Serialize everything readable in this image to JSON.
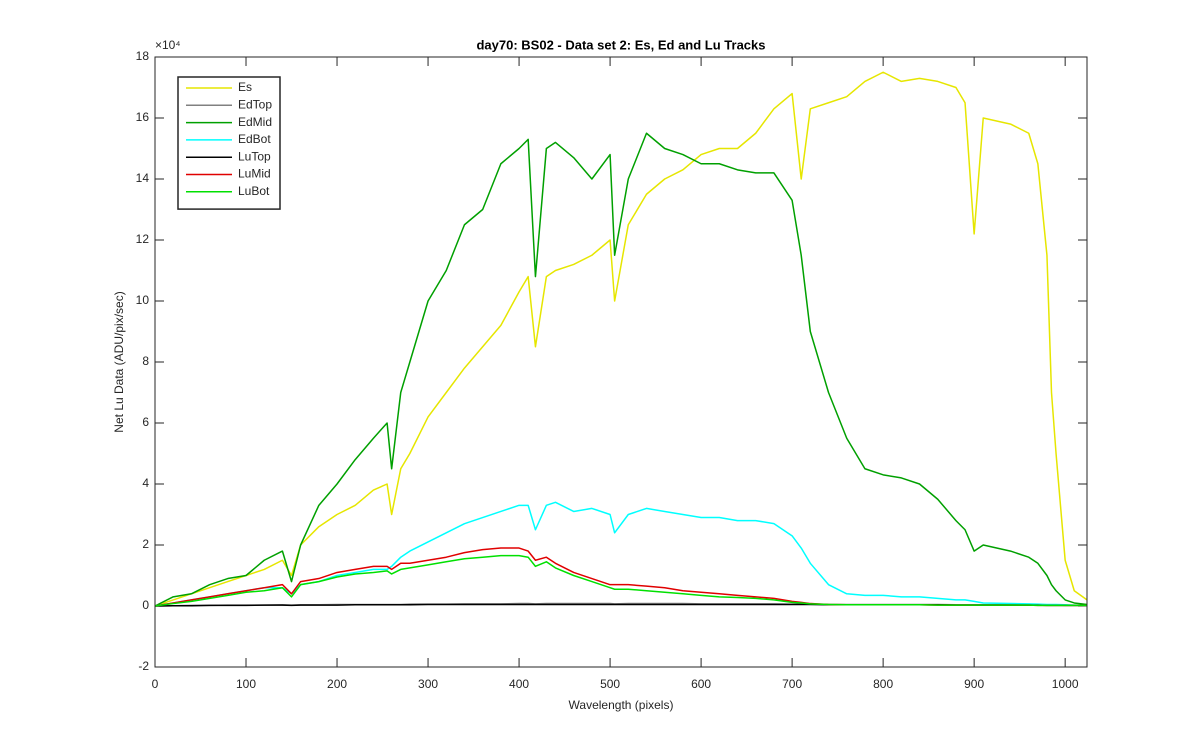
{
  "chart_data": {
    "type": "line",
    "title": "day70: BS02 - Data set 2: Es, Ed and Lu Tracks",
    "x_label": "Wavelength (pixels)",
    "y_label": "Net Lu Data (ADU/pix/sec)",
    "y_multiplier": "×10⁴",
    "legend": "upper left",
    "grid": false,
    "xlim": [
      0,
      1024
    ],
    "xticks": [
      0,
      100,
      200,
      300,
      400,
      500,
      600,
      700,
      800,
      900,
      1000
    ],
    "ylim": [
      -2,
      18
    ],
    "yticks": [
      -2,
      0,
      2,
      4,
      6,
      8,
      10,
      12,
      14,
      16,
      18
    ],
    "x": [
      0,
      20,
      40,
      60,
      80,
      100,
      120,
      140,
      150,
      160,
      180,
      200,
      220,
      240,
      255,
      260,
      270,
      280,
      300,
      320,
      340,
      360,
      380,
      400,
      410,
      418,
      430,
      440,
      460,
      480,
      500,
      505,
      520,
      540,
      560,
      580,
      600,
      620,
      640,
      660,
      680,
      700,
      710,
      720,
      740,
      760,
      780,
      800,
      820,
      840,
      860,
      880,
      890,
      900,
      910,
      940,
      960,
      970,
      980,
      985,
      990,
      1000,
      1010,
      1024
    ],
    "series": [
      {
        "name": "Es",
        "color": "#e6e600",
        "values": [
          0,
          0.2,
          0.4,
          0.6,
          0.8,
          1.0,
          1.2,
          1.5,
          1.0,
          2.0,
          2.6,
          3.0,
          3.3,
          3.8,
          4.0,
          3.0,
          4.5,
          5.0,
          6.2,
          7.0,
          7.8,
          8.5,
          9.2,
          10.3,
          10.8,
          8.5,
          10.8,
          11.0,
          11.2,
          11.5,
          12.0,
          10.0,
          12.5,
          13.5,
          14.0,
          14.3,
          14.8,
          15.0,
          15.0,
          15.5,
          16.3,
          16.8,
          14.0,
          16.3,
          16.5,
          16.7,
          17.2,
          17.5,
          17.2,
          17.3,
          17.2,
          17.0,
          16.5,
          12.2,
          16.0,
          15.8,
          15.5,
          14.5,
          11.5,
          7.0,
          5.0,
          1.5,
          0.5,
          0.2
        ]
      },
      {
        "name": "EdTop",
        "color": "#808080",
        "values": [
          0,
          0.01,
          0.02,
          0.02,
          0.03,
          0.03,
          0.03,
          0.04,
          0.03,
          0.04,
          0.04,
          0.05,
          0.05,
          0.05,
          0.05,
          0.05,
          0.05,
          0.06,
          0.06,
          0.06,
          0.07,
          0.07,
          0.07,
          0.08,
          0.08,
          0.07,
          0.08,
          0.08,
          0.08,
          0.08,
          0.08,
          0.07,
          0.08,
          0.08,
          0.08,
          0.08,
          0.07,
          0.07,
          0.07,
          0.07,
          0.07,
          0.06,
          0.06,
          0.06,
          0.05,
          0.05,
          0.05,
          0.05,
          0.05,
          0.05,
          0.05,
          0.04,
          0.04,
          0.04,
          0.04,
          0.04,
          0.04,
          0.03,
          0.03,
          0.03,
          0.03,
          0.02,
          0.02,
          0.02
        ]
      },
      {
        "name": "EdMid",
        "color": "#00a000",
        "values": [
          0,
          0.3,
          0.4,
          0.7,
          0.9,
          1.0,
          1.5,
          1.8,
          0.8,
          2.0,
          3.3,
          4.0,
          4.8,
          5.5,
          6.0,
          4.5,
          7.0,
          8.0,
          10.0,
          11.0,
          12.5,
          13.0,
          14.5,
          15.0,
          15.3,
          10.8,
          15.0,
          15.2,
          14.7,
          14.0,
          14.8,
          11.5,
          14.0,
          15.5,
          15.0,
          14.8,
          14.5,
          14.5,
          14.3,
          14.2,
          14.2,
          13.3,
          11.5,
          9.0,
          7.0,
          5.5,
          4.5,
          4.3,
          4.2,
          4.0,
          3.5,
          2.8,
          2.5,
          1.8,
          2.0,
          1.8,
          1.6,
          1.4,
          1.0,
          0.7,
          0.5,
          0.2,
          0.1,
          0.05
        ]
      },
      {
        "name": "EdBot",
        "color": "#00ffff",
        "values": [
          0,
          0.1,
          0.2,
          0.3,
          0.4,
          0.5,
          0.6,
          0.6,
          0.4,
          0.7,
          0.8,
          1.0,
          1.1,
          1.2,
          1.2,
          1.3,
          1.6,
          1.8,
          2.1,
          2.4,
          2.7,
          2.9,
          3.1,
          3.3,
          3.3,
          2.5,
          3.3,
          3.4,
          3.1,
          3.2,
          3.0,
          2.4,
          3.0,
          3.2,
          3.1,
          3.0,
          2.9,
          2.9,
          2.8,
          2.8,
          2.7,
          2.3,
          1.9,
          1.4,
          0.7,
          0.4,
          0.35,
          0.35,
          0.3,
          0.3,
          0.25,
          0.2,
          0.2,
          0.15,
          0.1,
          0.08,
          0.07,
          0.06,
          0.05,
          0.05,
          0.05,
          0.04,
          0.03,
          0.02
        ]
      },
      {
        "name": "LuTop",
        "color": "#000000",
        "values": [
          0,
          0.01,
          0.01,
          0.02,
          0.02,
          0.02,
          0.03,
          0.03,
          0.02,
          0.03,
          0.03,
          0.03,
          0.04,
          0.04,
          0.04,
          0.04,
          0.04,
          0.04,
          0.05,
          0.05,
          0.05,
          0.05,
          0.05,
          0.05,
          0.05,
          0.05,
          0.05,
          0.05,
          0.05,
          0.05,
          0.05,
          0.05,
          0.05,
          0.05,
          0.05,
          0.05,
          0.05,
          0.05,
          0.05,
          0.05,
          0.05,
          0.05,
          0.05,
          0.05,
          0.04,
          0.04,
          0.04,
          0.04,
          0.04,
          0.04,
          0.04,
          0.03,
          0.03,
          0.03,
          0.03,
          0.03,
          0.03,
          0.03,
          0.02,
          0.02,
          0.02,
          0.02,
          0.02,
          0.02
        ]
      },
      {
        "name": "LuMid",
        "color": "#e00000",
        "values": [
          0,
          0.1,
          0.2,
          0.3,
          0.4,
          0.5,
          0.6,
          0.7,
          0.4,
          0.8,
          0.9,
          1.1,
          1.2,
          1.3,
          1.3,
          1.2,
          1.4,
          1.4,
          1.5,
          1.6,
          1.75,
          1.85,
          1.9,
          1.9,
          1.8,
          1.5,
          1.6,
          1.4,
          1.1,
          0.9,
          0.7,
          0.7,
          0.7,
          0.65,
          0.6,
          0.5,
          0.45,
          0.4,
          0.35,
          0.3,
          0.25,
          0.15,
          0.12,
          0.08,
          0.05,
          0.04,
          0.04,
          0.04,
          0.04,
          0.04,
          0.03,
          0.03,
          0.03,
          0.03,
          0.03,
          0.03,
          0.03,
          0.02,
          0.02,
          0.02,
          0.02,
          0.02,
          0.02,
          0.02
        ]
      },
      {
        "name": "LuBot",
        "color": "#00e000",
        "values": [
          0,
          0.08,
          0.15,
          0.25,
          0.35,
          0.45,
          0.5,
          0.6,
          0.3,
          0.7,
          0.8,
          0.95,
          1.05,
          1.1,
          1.15,
          1.05,
          1.2,
          1.25,
          1.35,
          1.45,
          1.55,
          1.6,
          1.65,
          1.65,
          1.6,
          1.3,
          1.45,
          1.25,
          1.0,
          0.8,
          0.6,
          0.55,
          0.55,
          0.5,
          0.45,
          0.4,
          0.35,
          0.3,
          0.28,
          0.25,
          0.2,
          0.12,
          0.1,
          0.07,
          0.05,
          0.04,
          0.04,
          0.04,
          0.04,
          0.04,
          0.03,
          0.03,
          0.03,
          0.03,
          0.03,
          0.03,
          0.03,
          0.02,
          0.02,
          0.02,
          0.02,
          0.02,
          0.02,
          0.02
        ]
      }
    ]
  }
}
